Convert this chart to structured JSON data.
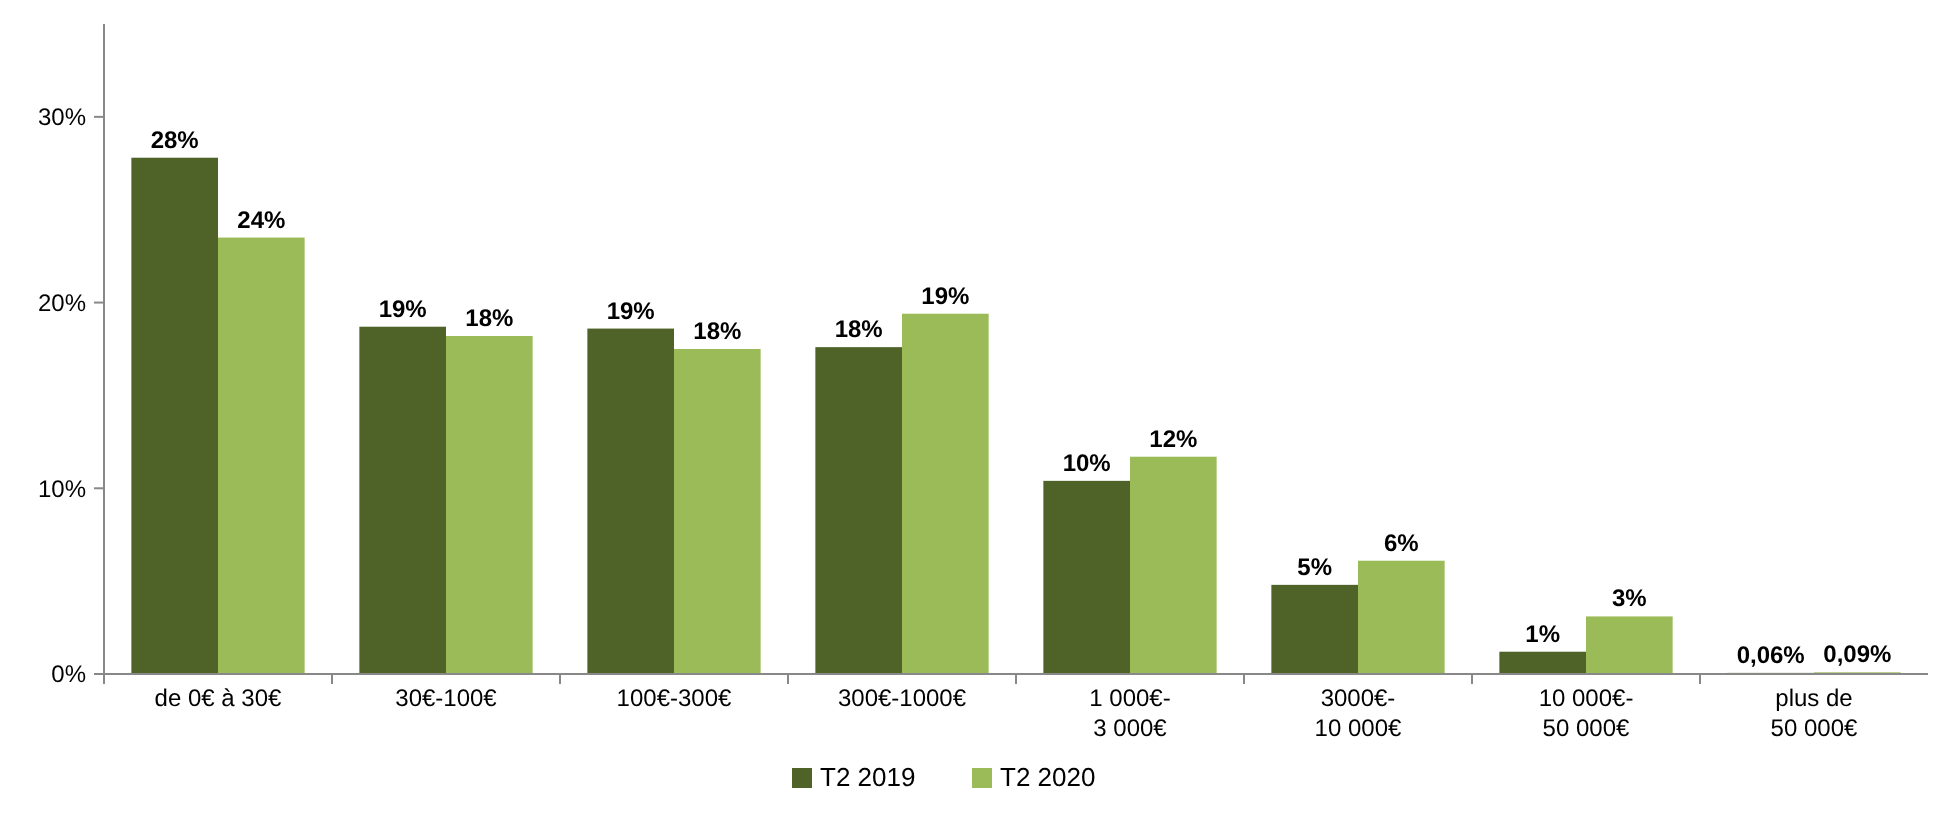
{
  "chart_data": {
    "type": "bar",
    "categories": [
      "de 0€ à 30€",
      "30€-100€",
      "100€-300€",
      "300€-1000€",
      "1 000€-\n3 000€",
      "3000€-\n10 000€",
      "10 000€-\n50 000€",
      "plus de\n50 000€"
    ],
    "series": [
      {
        "name": "T2 2019",
        "color": "#4f6228",
        "values": [
          27.8,
          18.7,
          18.6,
          17.6,
          10.4,
          4.8,
          1.2,
          0.06
        ],
        "value_labels": [
          "28%",
          "19%",
          "19%",
          "18%",
          "10%",
          "5%",
          "1%",
          "0,06%"
        ]
      },
      {
        "name": "T2 2020",
        "color": "#9bbb59",
        "values": [
          23.5,
          18.2,
          17.5,
          19.4,
          11.7,
          6.1,
          3.1,
          0.09
        ],
        "value_labels": [
          "24%",
          "18%",
          "18%",
          "19%",
          "12%",
          "6%",
          "3%",
          "0,09%"
        ]
      }
    ],
    "ylim": [
      0,
      35
    ],
    "yticks": [
      {
        "value": 0,
        "label": "0%"
      },
      {
        "value": 10,
        "label": "10%"
      },
      {
        "value": 20,
        "label": "20%"
      },
      {
        "value": 30,
        "label": "30%"
      }
    ],
    "grid": false,
    "legend": "bottom"
  }
}
